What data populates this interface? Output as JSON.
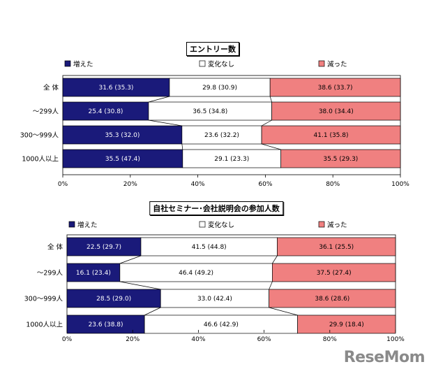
{
  "chart_data": [
    {
      "type": "bar",
      "stacked": true,
      "orientation": "horizontal",
      "title": "エントリー数",
      "categories": [
        "全 体",
        "～299人",
        "300～999人",
        "1000人以上"
      ],
      "series": [
        {
          "name": "増えた",
          "color": "#1a1a7a",
          "values": [
            31.6,
            25.4,
            35.3,
            35.5
          ],
          "labels": [
            "31.6 (35.3)",
            "25.4 (30.8)",
            "35.3 (32.0)",
            "35.5 (47.4)"
          ]
        },
        {
          "name": "変化なし",
          "color": "#ffffff",
          "values": [
            29.8,
            36.5,
            23.6,
            29.1
          ],
          "labels": [
            "29.8 (30.9)",
            "36.5 (34.8)",
            "23.6 (32.2)",
            "29.1 (23.3)"
          ]
        },
        {
          "name": "減った",
          "color": "#f08080",
          "values": [
            38.6,
            38.0,
            41.1,
            35.5
          ],
          "labels": [
            "38.6 (33.7)",
            "38.0 (34.4)",
            "41.1 (35.8)",
            "35.5 (29.3)"
          ]
        }
      ],
      "xlim": [
        0,
        100
      ],
      "xticks": [
        "0%",
        "20%",
        "40%",
        "60%",
        "80%",
        "100%"
      ],
      "legend_position": "top"
    },
    {
      "type": "bar",
      "stacked": true,
      "orientation": "horizontal",
      "title": "自社セミナー･会社説明会の参加人数",
      "categories": [
        "全 体",
        "～299人",
        "300～999人",
        "1000人以上"
      ],
      "series": [
        {
          "name": "増えた",
          "color": "#1a1a7a",
          "values": [
            22.5,
            16.1,
            28.5,
            23.6
          ],
          "labels": [
            "22.5 (29.7)",
            "16.1 (23.4)",
            "28.5 (29.0)",
            "23.6 (38.8)"
          ]
        },
        {
          "name": "変化なし",
          "color": "#ffffff",
          "values": [
            41.5,
            46.4,
            33.0,
            46.6
          ],
          "labels": [
            "41.5 (44.8)",
            "46.4 (49.2)",
            "33.0 (42.4)",
            "46.6 (42.9)"
          ]
        },
        {
          "name": "減った",
          "color": "#f08080",
          "values": [
            36.1,
            37.5,
            38.6,
            29.9
          ],
          "labels": [
            "36.1 (25.5)",
            "37.5 (27.4)",
            "38.6 (28.6)",
            "29.9 (18.4)"
          ]
        }
      ],
      "xlim": [
        0,
        100
      ],
      "xticks": [
        "0%",
        "20%",
        "40%",
        "60%",
        "80%",
        "100%"
      ],
      "legend_position": "top"
    }
  ],
  "watermark": "ReseMom"
}
